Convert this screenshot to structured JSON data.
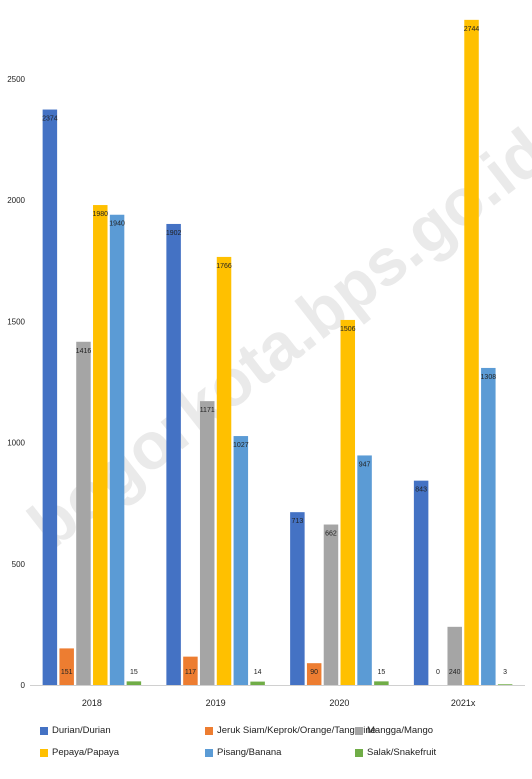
{
  "chart_data": {
    "type": "bar",
    "categories": [
      "2018",
      "2019",
      "2020",
      "2021x"
    ],
    "series": [
      {
        "name": "Durian/Durian",
        "color": "#4472C4",
        "values": [
          2374,
          1902,
          713,
          843
        ]
      },
      {
        "name": "Jeruk Siam/Keprok/Orange/Tangerine",
        "color": "#ED7D31",
        "values": [
          151,
          117,
          90,
          0
        ]
      },
      {
        "name": "Mangga/Mango",
        "color": "#A5A5A5",
        "values": [
          1416,
          1171,
          662,
          240
        ]
      },
      {
        "name": "Pepaya/Papaya",
        "color": "#FFC000",
        "values": [
          1980,
          1766,
          1506,
          2744
        ]
      },
      {
        "name": "Pisang/Banana",
        "color": "#5B9BD5",
        "values": [
          1940,
          1027,
          947,
          1308
        ]
      },
      {
        "name": "Salak/Snakefruit",
        "color": "#70AD47",
        "values": [
          15,
          14,
          15,
          3
        ]
      }
    ],
    "yticks": [
      0,
      500,
      1000,
      1500,
      2000,
      2500
    ],
    "ylim": [
      0,
      2750
    ],
    "grid": false,
    "legend_position": "bottom"
  },
  "watermark": "bogorkota.bps.go.id"
}
